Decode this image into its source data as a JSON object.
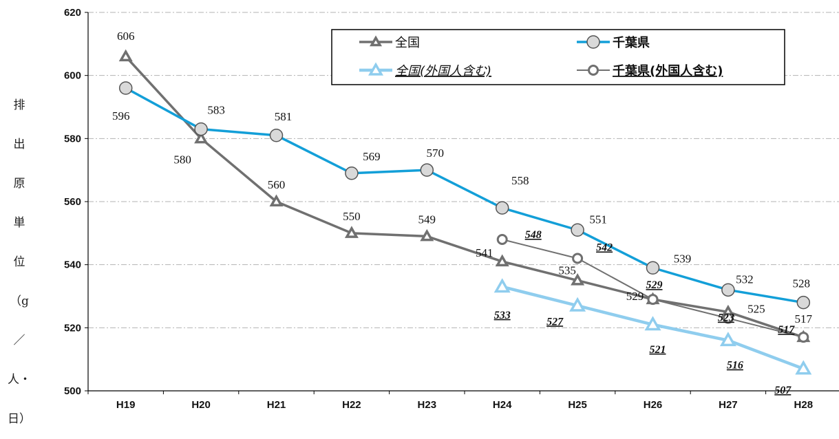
{
  "chart_data": {
    "type": "line",
    "categories": [
      "H19",
      "H20",
      "H21",
      "H22",
      "H23",
      "H24",
      "H25",
      "H26",
      "H27",
      "H28"
    ],
    "ylabel": "排出原単位（g／人・日）",
    "ylabel_chars": [
      "排",
      "出",
      "原",
      "単",
      "位",
      "（g",
      "／",
      "人・",
      "日）"
    ],
    "ylim": [
      500,
      620
    ],
    "yticks": [
      500,
      520,
      540,
      560,
      580,
      600,
      620
    ],
    "grid": "horizontal dash-dot",
    "legend_position": "top-right",
    "series": [
      {
        "name": "全国",
        "color": "#707070",
        "marker": "triangle",
        "values": [
          606,
          580,
          560,
          550,
          549,
          541,
          535,
          529,
          525,
          517
        ],
        "labels": [
          "606",
          "580",
          "560",
          "550",
          "549",
          "541",
          "535",
          "529",
          "525",
          "517"
        ]
      },
      {
        "name": "千葉県",
        "color": "#139fd8",
        "marker": "circle",
        "values": [
          596,
          583,
          581,
          569,
          570,
          558,
          551,
          539,
          532,
          528
        ],
        "labels": [
          "596",
          "583",
          "581",
          "569",
          "570",
          "558",
          "551",
          "539",
          "532",
          "528"
        ]
      },
      {
        "name": "全国(外国人含む)",
        "color": "#8fcdee",
        "marker": "triangle",
        "values": [
          null,
          null,
          null,
          null,
          null,
          533,
          527,
          521,
          516,
          507
        ],
        "labels": [
          "",
          "",
          "",
          "",
          "",
          "533",
          "527",
          "521",
          "516",
          "507"
        ]
      },
      {
        "name": "千葉県(外国人含む)",
        "color": "#707070",
        "marker": "circle-open",
        "values": [
          null,
          null,
          null,
          null,
          null,
          548,
          542,
          529,
          523,
          517
        ],
        "labels": [
          "",
          "",
          "",
          "",
          "",
          "548",
          "542",
          "529",
          "523",
          "517"
        ]
      }
    ]
  }
}
